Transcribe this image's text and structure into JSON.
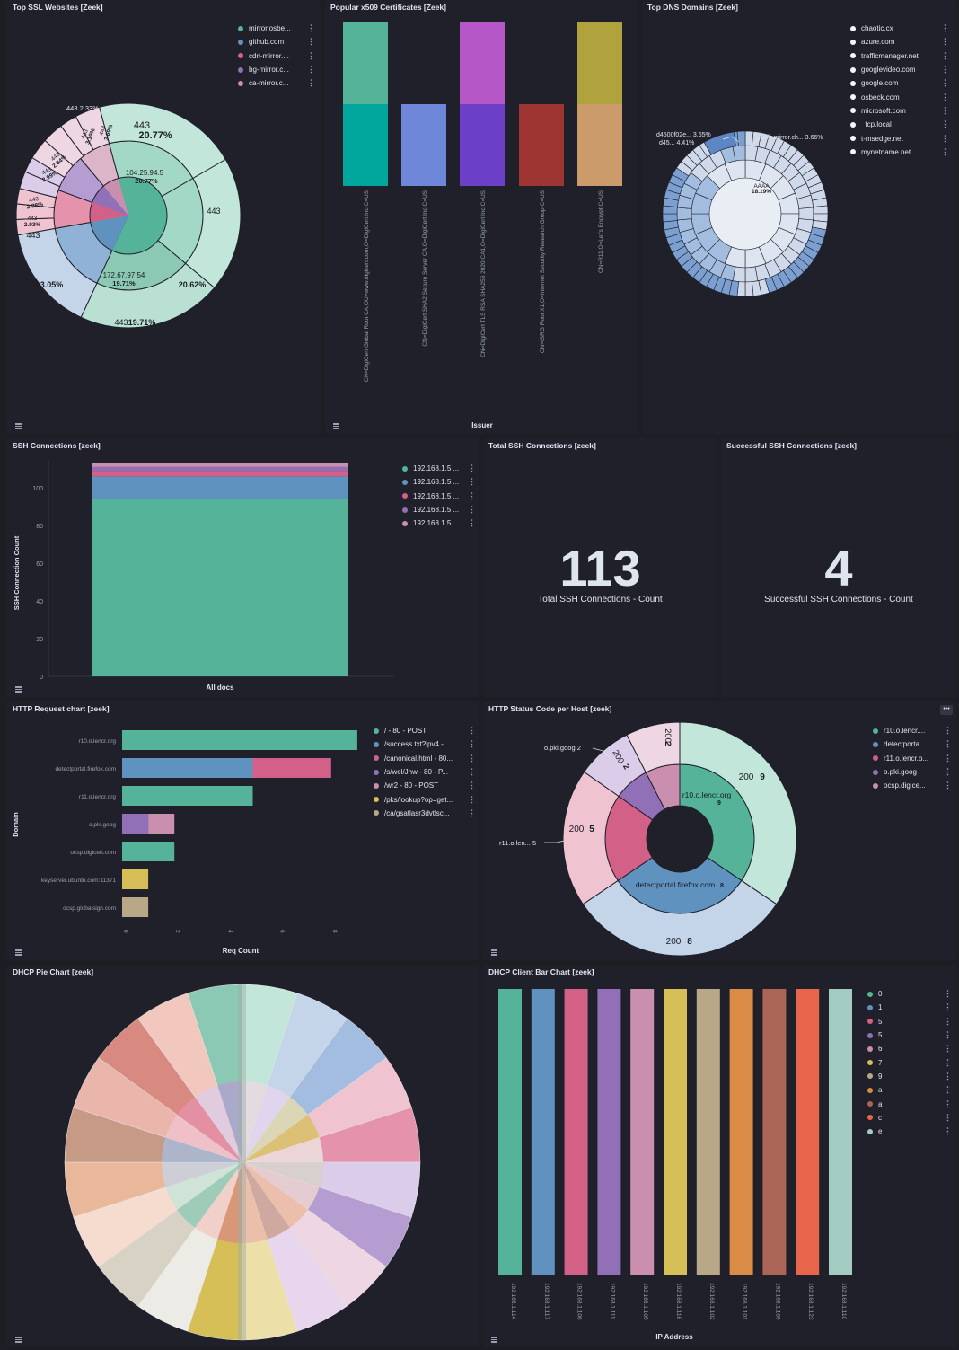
{
  "panels": {
    "ssl": {
      "title": "Top SSL Websites [Zeek]",
      "legend": [
        {
          "label": "mirror.osbe...",
          "color": "#54b399"
        },
        {
          "label": "github.com",
          "color": "#6092c0"
        },
        {
          "label": "cdn-mirror....",
          "color": "#d36086"
        },
        {
          "label": "bg-mirror.c...",
          "color": "#9170b8"
        },
        {
          "label": "ca-mirror.c...",
          "color": "#ca8eae"
        }
      ],
      "labels": {
        "top_port": "443",
        "top_pct": "20.77%",
        "inner1_ip": "104.25.94.5",
        "inner1_pct": "20.77%",
        "inner2_ip": "172.67.97.54",
        "inner2_pct": "19.71%",
        "right_port": "443",
        "right_pct": "20.62%",
        "bottom": "443",
        "bottom_pct": "19.71%",
        "left_port": "443",
        "left_pct": "13.05%",
        "small_port": "443",
        "small_pct": "2.33%",
        "s1": "443",
        "s1p": "3.19%",
        "s2": "443",
        "s2p": "3.69%",
        "s3": "443",
        "s3p": "2.84%",
        "s4": "443",
        "s4p": "2.99%",
        "s5": "443",
        "s5p": "2.88%",
        "s6": "443",
        "s6p": "2.93%"
      }
    },
    "x509": {
      "title": "Popular x509 Certificates [Zeek]",
      "xlabel": "Issuer",
      "categories": [
        "CN=DigiCert Global Root CA,OU=www.digicert.com,O=DigiCert Inc,C=US",
        "CN=DigiCert SHA2 Secure Server CA,O=DigiCert Inc,C=US",
        "CN=DigiCert TLS RSA SHA256 2020 CA1,O=DigiCert Inc,C=US",
        "CN=ISRG Root X1,O=Internet Security Research Group,C=US",
        "CN=R11,O=Let's Encrypt,C=US"
      ]
    },
    "dns": {
      "title": "Top DNS Domains [Zeek]",
      "legend": [
        "chaotic.cx",
        "azure.com",
        "trafficmanager.net",
        "googlevideo.com",
        "google.com",
        "osbeck.com",
        "microsoft.com",
        "_tcp.local",
        "t-msedge.net",
        "mynetname.net"
      ],
      "labels": {
        "a1": "d4500f02e...",
        "a1p": "3.65%",
        "a2": "d45...",
        "a2p": "4.41%",
        "a3": "fr-mirror.ch...",
        "a3p": "3.66%",
        "center": "AAAA",
        "center_pct": "18.19%"
      }
    },
    "ssh": {
      "title": "SSH Connections [zeek]",
      "ylabel": "SSH Connection Count",
      "xlabel": "All docs",
      "legend": [
        {
          "label": "192.168.1.5 ...",
          "color": "#54b399"
        },
        {
          "label": "192.168.1.5 ...",
          "color": "#6092c0"
        },
        {
          "label": "192.168.1.5 ...",
          "color": "#d36086"
        },
        {
          "label": "192.168.1.5 ...",
          "color": "#9170b8"
        },
        {
          "label": "192.168.1.5 ...",
          "color": "#ca8eae"
        }
      ],
      "yticks": [
        "100",
        "80",
        "60",
        "40",
        "20",
        "0"
      ]
    },
    "total_ssh": {
      "title": "Total SSH Connections [zeek]",
      "value": "113",
      "label": "Total SSH Connections - Count"
    },
    "success_ssh": {
      "title": "Successful SSH Connections [zeek]",
      "value": "4",
      "label": "Successful SSH Connections - Count"
    },
    "http_req": {
      "title": "HTTP Request chart [zeek]",
      "ylabel": "Domain",
      "xlabel": "Req Count",
      "legend": [
        {
          "label": "/ - 80 - POST",
          "color": "#54b399"
        },
        {
          "label": "/success.txt?ipv4 - ...",
          "color": "#6092c0"
        },
        {
          "label": "/canonical.html - 80...",
          "color": "#d36086"
        },
        {
          "label": "/s/wel/Jnw - 80 - P...",
          "color": "#9170b8"
        },
        {
          "label": "/wr2 - 80 - POST",
          "color": "#ca8eae"
        },
        {
          "label": "/pks/lookup?op=get...",
          "color": "#d6bf57"
        },
        {
          "label": "/ca/gsatlasr3dvtlsc...",
          "color": "#b9a888"
        }
      ],
      "domains": [
        "r10.o.lencr.org",
        "detectportal.firefox.com",
        "r11.o.lencr.org",
        "o.pki.goog",
        "ocsp.digicert.com",
        "keyserver.ubuntu.com:11371",
        "ocsp.globalsign.com"
      ],
      "xticks": [
        "0",
        "2",
        "4",
        "6",
        "8"
      ]
    },
    "http_status": {
      "title": "HTTP Status Code per Host [zeek]",
      "legend": [
        {
          "label": "r10.o.lencr....",
          "color": "#54b399"
        },
        {
          "label": "detectporta...",
          "color": "#6092c0"
        },
        {
          "label": "r11.o.lencr.o...",
          "color": "#d36086"
        },
        {
          "label": "o.pki.goog",
          "color": "#9170b8"
        },
        {
          "label": "ocsp.digice...",
          "color": "#ca8eae"
        }
      ],
      "labels": {
        "r10": "r10.o.lencr.org",
        "r10n": "9",
        "detect": "detectportal.firefox.com",
        "detectn": "8",
        "o200_9": "200",
        "o200_9n": "9",
        "o200_8": "200",
        "o200_8n": "8",
        "o200_5": "200",
        "o200_5n": "5",
        "o200_2a": "200",
        "o200_2an": "2",
        "o200_2b": "200",
        "o200_2bn": "2",
        "pki": "o.pki.goog",
        "pkin": "2",
        "r11": "r11.o.len...",
        "r11n": "5"
      }
    },
    "dhcp_pie": {
      "title": "DHCP Pie Chart [zeek]"
    },
    "dhcp_bar": {
      "title": "DHCP Client Bar Chart [zeek]",
      "xlabel": "IP Address",
      "ips": [
        "192.168.1.114",
        "192.168.1.117",
        "192.168.1.106",
        "192.168.1.111",
        "192.168.1.105",
        "192.168.1.116",
        "192.168.1.102",
        "192.168.1.101",
        "192.168.1.109",
        "192.168.1.123",
        "192.168.1.110"
      ],
      "colors": [
        "#54b399",
        "#6092c0",
        "#d36086",
        "#9170b8",
        "#ca8eae",
        "#d6bf57",
        "#b9a888",
        "#da8b45",
        "#aa6556",
        "#e7664c",
        "#a2cbc2"
      ],
      "legend": [
        {
          "label": "0",
          "color": "#54b399"
        },
        {
          "label": "1",
          "color": "#6092c0"
        },
        {
          "label": "5",
          "color": "#d36086"
        },
        {
          "label": "5",
          "color": "#9170b8"
        },
        {
          "label": "6",
          "color": "#ca8eae"
        },
        {
          "label": "7",
          "color": "#d6bf57"
        },
        {
          "label": "9",
          "color": "#b9a888"
        },
        {
          "label": "a",
          "color": "#da8b45"
        },
        {
          "label": "a",
          "color": "#aa6556"
        },
        {
          "label": "c",
          "color": "#e7664c"
        },
        {
          "label": "e",
          "color": "#a2cbc2"
        }
      ]
    }
  },
  "chart_data": [
    {
      "type": "pie",
      "title": "Top SSL Websites [Zeek]",
      "slices": [
        {
          "label": "443",
          "value": 20.77
        },
        {
          "label": "443",
          "value": 20.62
        },
        {
          "label": "443",
          "value": 19.71
        },
        {
          "label": "443",
          "value": 13.05
        },
        {
          "label": "443",
          "value": 3.19
        },
        {
          "label": "443",
          "value": 3.69
        },
        {
          "label": "443",
          "value": 2.84
        },
        {
          "label": "443",
          "value": 2.99
        },
        {
          "label": "443",
          "value": 2.88
        },
        {
          "label": "443",
          "value": 2.93
        },
        {
          "label": "443",
          "value": 2.33
        }
      ]
    },
    {
      "type": "bar",
      "title": "Popular x509 Certificates [Zeek]",
      "xlabel": "Issuer",
      "categories": [
        "CN=DigiCert Global Root CA,OU=www.digicert.com,O=DigiCert Inc,C=US",
        "CN=DigiCert SHA2 Secure Server CA,O=DigiCert Inc,C=US",
        "CN=DigiCert TLS RSA SHA256 2020 CA1,O=DigiCert Inc,C=US",
        "CN=ISRG Root X1,O=Internet Security Research Group,C=US",
        "CN=R11,O=Let's Encrypt,C=US"
      ],
      "series": [
        {
          "values": [
            50,
            50,
            50,
            50,
            50
          ],
          "colors": [
            "#00a69b",
            "#6f87d8",
            "#6b3fc8",
            "#9e3533",
            "#cc9b6b"
          ]
        },
        {
          "values": [
            50,
            0,
            50,
            0,
            50
          ],
          "colors": [
            "#54b399",
            "",
            "#b657c8",
            "",
            "#b0a23c"
          ]
        }
      ]
    },
    {
      "type": "bar",
      "title": "SSH Connections [zeek]",
      "xlabel": "All docs",
      "ylabel": "SSH Connection Count",
      "ylim": [
        0,
        113
      ],
      "categories": [
        "All docs"
      ],
      "series": [
        {
          "values": [
            94
          ]
        },
        {
          "values": [
            12
          ]
        },
        {
          "values": [
            3
          ]
        },
        {
          "values": [
            2
          ]
        },
        {
          "values": [
            2
          ]
        }
      ]
    },
    {
      "type": "bar",
      "title": "HTTP Request chart [zeek]",
      "xlabel": "Req Count",
      "ylabel": "Domain",
      "categories": [
        "r10.o.lencr.org",
        "detectportal.firefox.com",
        "r11.o.lencr.org",
        "o.pki.goog",
        "ocsp.digicert.com",
        "keyserver.ubuntu.com:11371",
        "ocsp.globalsign.com"
      ],
      "segments": [
        [
          {
            "v": 9,
            "c": "#54b399"
          }
        ],
        [
          {
            "v": 5,
            "c": "#6092c0"
          },
          {
            "v": 3,
            "c": "#d36086"
          }
        ],
        [
          {
            "v": 5,
            "c": "#54b399"
          }
        ],
        [
          {
            "v": 1,
            "c": "#9170b8"
          },
          {
            "v": 1,
            "c": "#ca8eae"
          }
        ],
        [
          {
            "v": 2,
            "c": "#54b399"
          }
        ],
        [
          {
            "v": 1,
            "c": "#d6bf57"
          }
        ],
        [
          {
            "v": 1,
            "c": "#b9a888"
          }
        ]
      ],
      "xlim": [
        0,
        9
      ]
    },
    {
      "type": "pie",
      "title": "HTTP Status Code per Host [zeek]",
      "inner": [
        {
          "label": "r10.o.lencr.org",
          "value": 9
        },
        {
          "label": "detectportal.firefox.com",
          "value": 8
        },
        {
          "label": "r11.o.lencr.org",
          "value": 5
        },
        {
          "label": "o.pki.goog",
          "value": 2
        },
        {
          "label": "ocsp.digicert.com",
          "value": 2
        }
      ]
    },
    {
      "type": "bar",
      "title": "DHCP Client Bar Chart [zeek]",
      "xlabel": "IP Address",
      "categories": [
        "192.168.1.114",
        "192.168.1.117",
        "192.168.1.106",
        "192.168.1.111",
        "192.168.1.105",
        "192.168.1.116",
        "192.168.1.102",
        "192.168.1.101",
        "192.168.1.109",
        "192.168.1.123",
        "192.168.1.110"
      ],
      "values": [
        1,
        1,
        1,
        1,
        1,
        1,
        1,
        1,
        1,
        1,
        1
      ]
    }
  ]
}
